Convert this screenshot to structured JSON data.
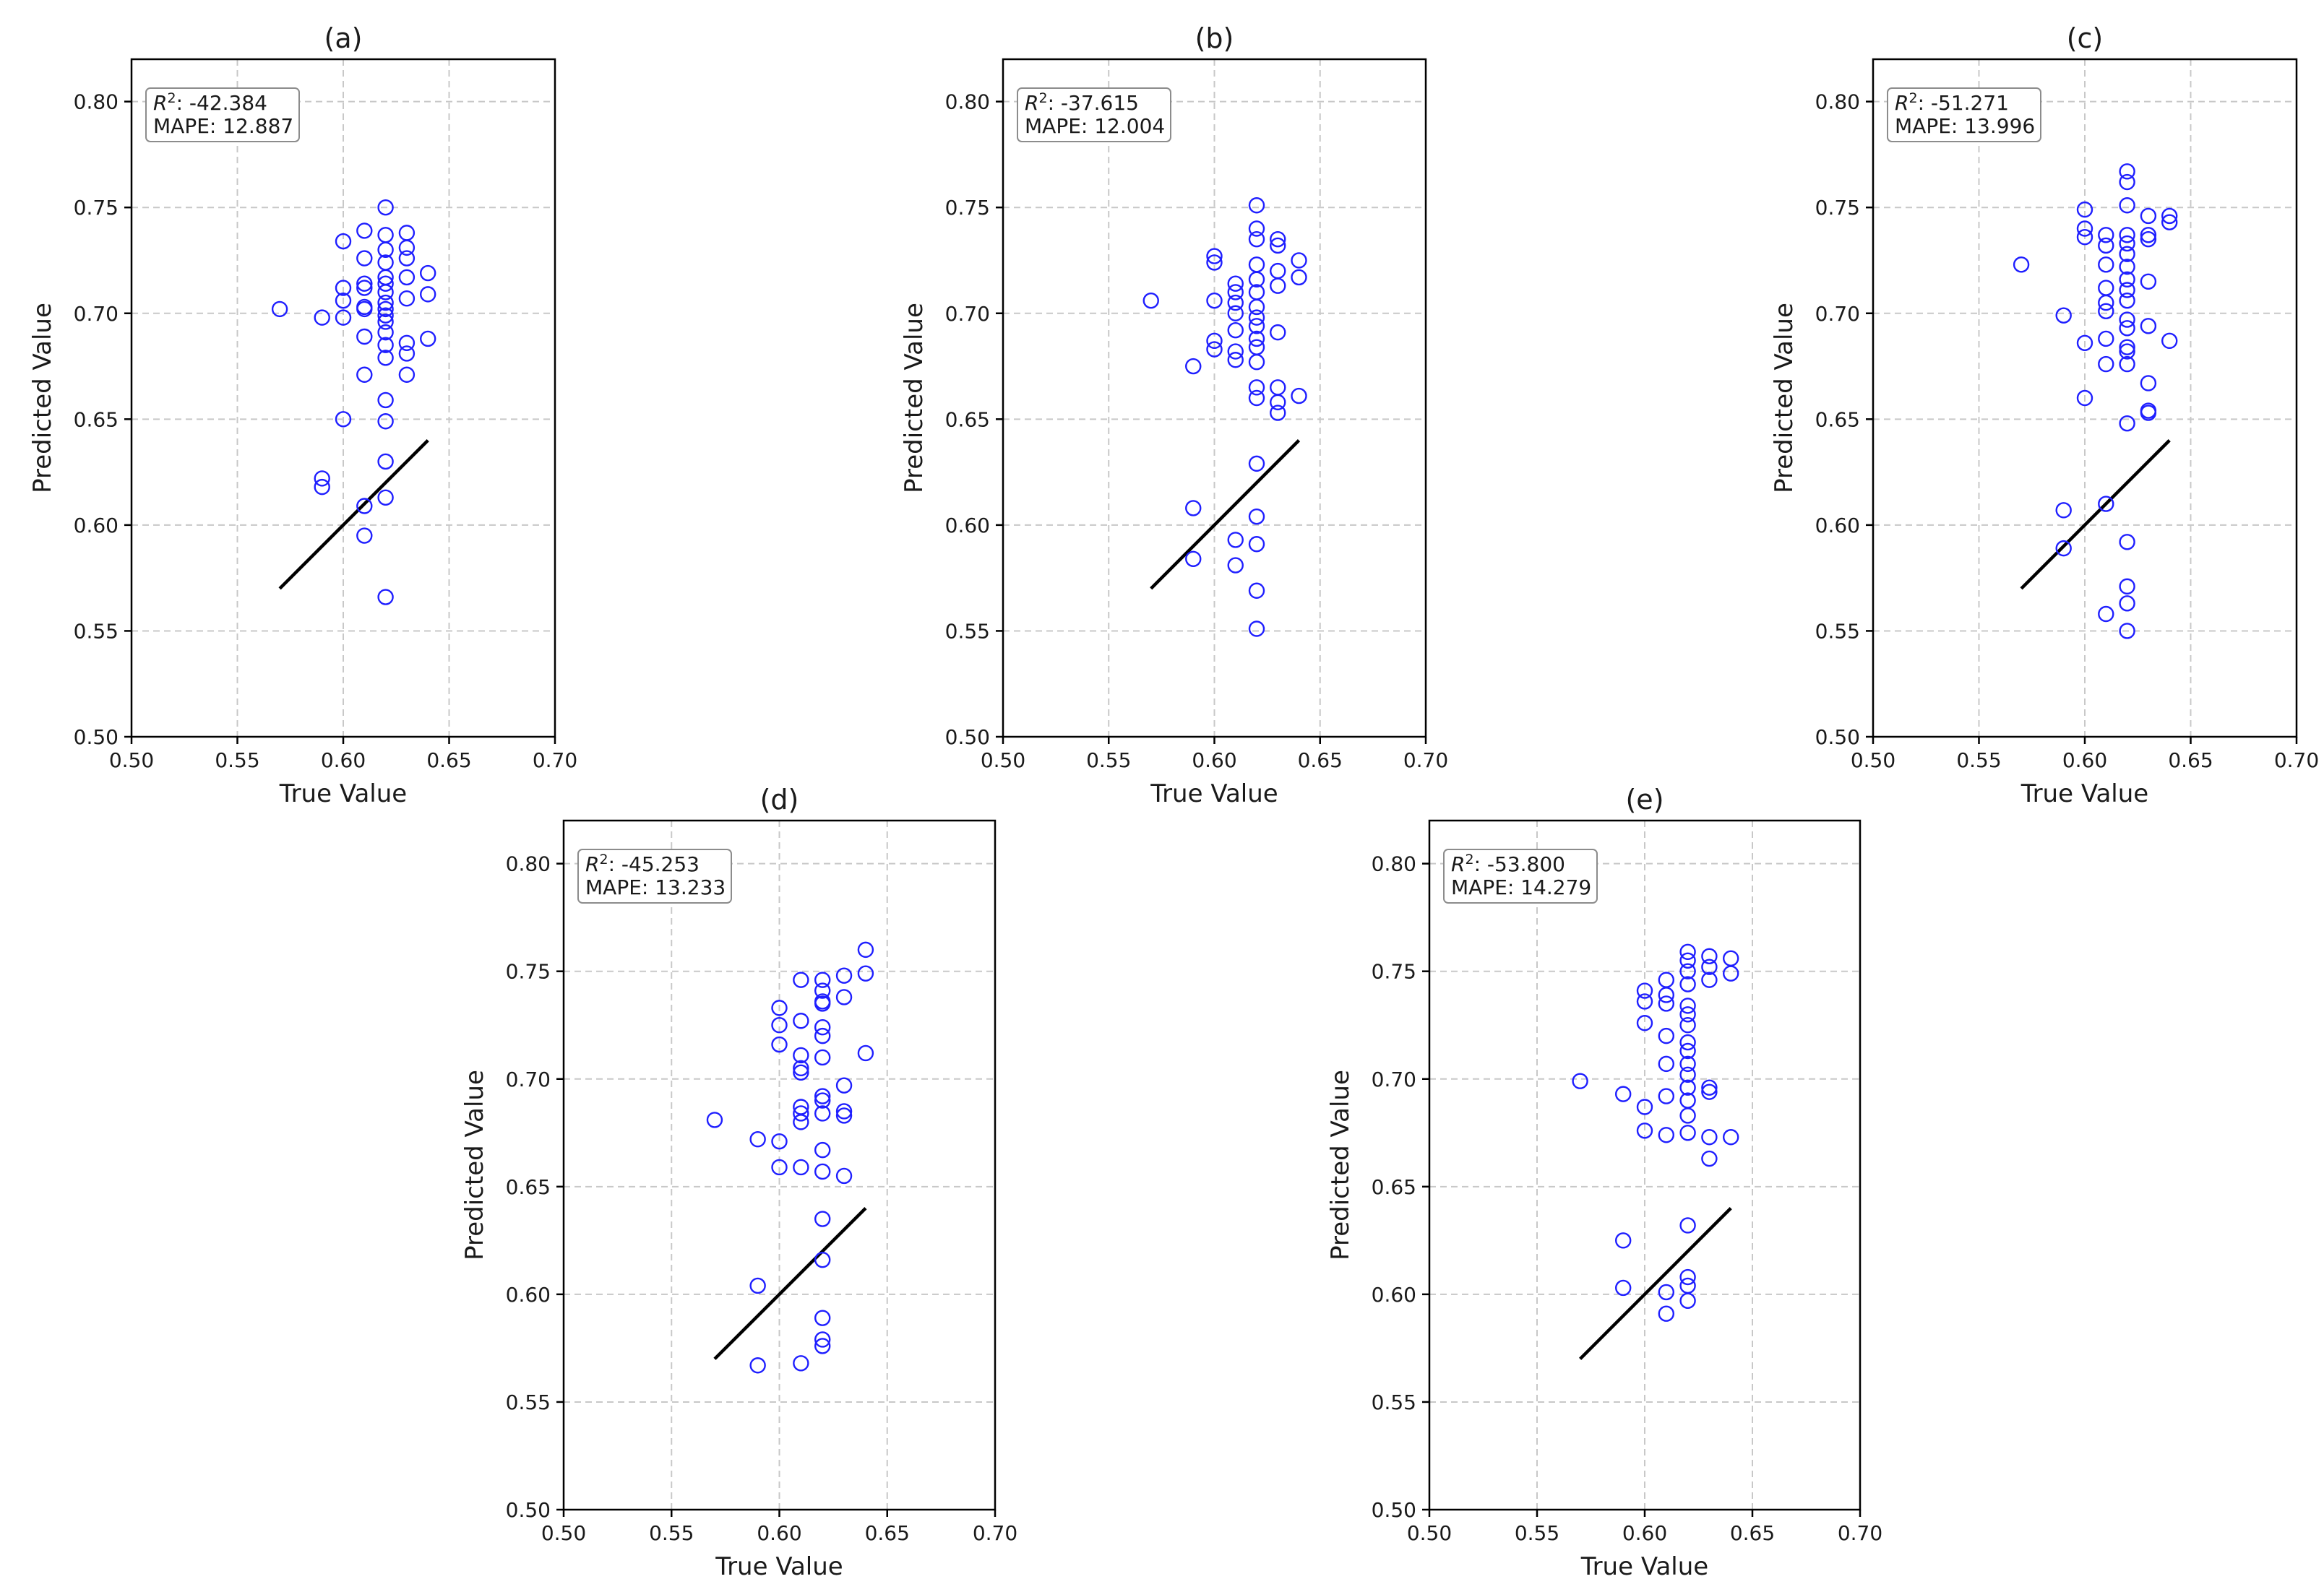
{
  "colors": {
    "points": "#1f1fff",
    "reference_line": "#000000"
  },
  "chart_data": [
    {
      "type": "scatter",
      "title": "(a)",
      "xlabel": "True Value",
      "ylabel": "Predicted Value",
      "xlim": [
        0.5,
        0.7
      ],
      "ylim": [
        0.5,
        0.82
      ],
      "xticks": [
        "0.50",
        "0.55",
        "0.60",
        "0.65",
        "0.70"
      ],
      "yticks": [
        "0.50",
        "0.55",
        "0.60",
        "0.65",
        "0.70",
        "0.75",
        "0.80"
      ],
      "grid": true,
      "stats": {
        "r2_label": "R",
        "r2_sup": "2",
        "r2_value": ": -42.384",
        "mape": "MAPE: 12.887"
      },
      "reference_line": [
        [
          0.57,
          0.57
        ],
        [
          0.64,
          0.64
        ]
      ],
      "points": [
        [
          0.57,
          0.702
        ],
        [
          0.59,
          0.698
        ],
        [
          0.59,
          0.622
        ],
        [
          0.59,
          0.618
        ],
        [
          0.6,
          0.734
        ],
        [
          0.6,
          0.712
        ],
        [
          0.6,
          0.706
        ],
        [
          0.6,
          0.698
        ],
        [
          0.6,
          0.65
        ],
        [
          0.61,
          0.739
        ],
        [
          0.61,
          0.726
        ],
        [
          0.61,
          0.714
        ],
        [
          0.61,
          0.712
        ],
        [
          0.61,
          0.703
        ],
        [
          0.61,
          0.702
        ],
        [
          0.61,
          0.689
        ],
        [
          0.61,
          0.671
        ],
        [
          0.61,
          0.609
        ],
        [
          0.61,
          0.595
        ],
        [
          0.62,
          0.75
        ],
        [
          0.62,
          0.737
        ],
        [
          0.62,
          0.73
        ],
        [
          0.62,
          0.724
        ],
        [
          0.62,
          0.717
        ],
        [
          0.62,
          0.714
        ],
        [
          0.62,
          0.71
        ],
        [
          0.62,
          0.705
        ],
        [
          0.62,
          0.702
        ],
        [
          0.62,
          0.699
        ],
        [
          0.62,
          0.696
        ],
        [
          0.62,
          0.691
        ],
        [
          0.62,
          0.685
        ],
        [
          0.62,
          0.679
        ],
        [
          0.62,
          0.659
        ],
        [
          0.62,
          0.649
        ],
        [
          0.62,
          0.63
        ],
        [
          0.62,
          0.613
        ],
        [
          0.62,
          0.566
        ],
        [
          0.63,
          0.738
        ],
        [
          0.63,
          0.731
        ],
        [
          0.63,
          0.726
        ],
        [
          0.63,
          0.717
        ],
        [
          0.63,
          0.707
        ],
        [
          0.63,
          0.686
        ],
        [
          0.63,
          0.681
        ],
        [
          0.63,
          0.671
        ],
        [
          0.64,
          0.719
        ],
        [
          0.64,
          0.709
        ],
        [
          0.64,
          0.688
        ]
      ]
    },
    {
      "type": "scatter",
      "title": "(b)",
      "xlabel": "True Value",
      "ylabel": "Predicted Value",
      "xlim": [
        0.5,
        0.7
      ],
      "ylim": [
        0.5,
        0.82
      ],
      "xticks": [
        "0.50",
        "0.55",
        "0.60",
        "0.65",
        "0.70"
      ],
      "yticks": [
        "0.50",
        "0.55",
        "0.60",
        "0.65",
        "0.70",
        "0.75",
        "0.80"
      ],
      "grid": true,
      "stats": {
        "r2_label": "R",
        "r2_sup": "2",
        "r2_value": ": -37.615",
        "mape": "MAPE: 12.004"
      },
      "reference_line": [
        [
          0.57,
          0.57
        ],
        [
          0.64,
          0.64
        ]
      ],
      "points": [
        [
          0.57,
          0.706
        ],
        [
          0.59,
          0.675
        ],
        [
          0.59,
          0.608
        ],
        [
          0.59,
          0.584
        ],
        [
          0.6,
          0.727
        ],
        [
          0.6,
          0.724
        ],
        [
          0.6,
          0.706
        ],
        [
          0.6,
          0.687
        ],
        [
          0.6,
          0.683
        ],
        [
          0.61,
          0.714
        ],
        [
          0.61,
          0.71
        ],
        [
          0.61,
          0.705
        ],
        [
          0.61,
          0.7
        ],
        [
          0.61,
          0.692
        ],
        [
          0.61,
          0.682
        ],
        [
          0.61,
          0.678
        ],
        [
          0.61,
          0.593
        ],
        [
          0.61,
          0.581
        ],
        [
          0.62,
          0.751
        ],
        [
          0.62,
          0.74
        ],
        [
          0.62,
          0.735
        ],
        [
          0.62,
          0.723
        ],
        [
          0.62,
          0.716
        ],
        [
          0.62,
          0.71
        ],
        [
          0.62,
          0.703
        ],
        [
          0.62,
          0.698
        ],
        [
          0.62,
          0.694
        ],
        [
          0.62,
          0.688
        ],
        [
          0.62,
          0.684
        ],
        [
          0.62,
          0.677
        ],
        [
          0.62,
          0.665
        ],
        [
          0.62,
          0.66
        ],
        [
          0.62,
          0.629
        ],
        [
          0.62,
          0.604
        ],
        [
          0.62,
          0.591
        ],
        [
          0.62,
          0.569
        ],
        [
          0.62,
          0.551
        ],
        [
          0.63,
          0.735
        ],
        [
          0.63,
          0.732
        ],
        [
          0.63,
          0.72
        ],
        [
          0.63,
          0.713
        ],
        [
          0.63,
          0.691
        ],
        [
          0.63,
          0.665
        ],
        [
          0.63,
          0.658
        ],
        [
          0.63,
          0.653
        ],
        [
          0.64,
          0.725
        ],
        [
          0.64,
          0.717
        ],
        [
          0.64,
          0.661
        ]
      ]
    },
    {
      "type": "scatter",
      "title": "(c)",
      "xlabel": "True Value",
      "ylabel": "Predicted Value",
      "xlim": [
        0.5,
        0.7
      ],
      "ylim": [
        0.5,
        0.82
      ],
      "xticks": [
        "0.50",
        "0.55",
        "0.60",
        "0.65",
        "0.70"
      ],
      "yticks": [
        "0.50",
        "0.55",
        "0.60",
        "0.65",
        "0.70",
        "0.75",
        "0.80"
      ],
      "grid": true,
      "stats": {
        "r2_label": "R",
        "r2_sup": "2",
        "r2_value": ": -51.271",
        "mape": "MAPE: 13.996"
      },
      "reference_line": [
        [
          0.57,
          0.57
        ],
        [
          0.64,
          0.64
        ]
      ],
      "points": [
        [
          0.57,
          0.723
        ],
        [
          0.59,
          0.699
        ],
        [
          0.59,
          0.607
        ],
        [
          0.59,
          0.589
        ],
        [
          0.6,
          0.749
        ],
        [
          0.6,
          0.74
        ],
        [
          0.6,
          0.736
        ],
        [
          0.6,
          0.686
        ],
        [
          0.6,
          0.66
        ],
        [
          0.61,
          0.737
        ],
        [
          0.61,
          0.732
        ],
        [
          0.61,
          0.723
        ],
        [
          0.61,
          0.712
        ],
        [
          0.61,
          0.705
        ],
        [
          0.61,
          0.701
        ],
        [
          0.61,
          0.688
        ],
        [
          0.61,
          0.676
        ],
        [
          0.61,
          0.61
        ],
        [
          0.61,
          0.558
        ],
        [
          0.62,
          0.767
        ],
        [
          0.62,
          0.762
        ],
        [
          0.62,
          0.751
        ],
        [
          0.62,
          0.737
        ],
        [
          0.62,
          0.733
        ],
        [
          0.62,
          0.728
        ],
        [
          0.62,
          0.722
        ],
        [
          0.62,
          0.716
        ],
        [
          0.62,
          0.711
        ],
        [
          0.62,
          0.706
        ],
        [
          0.62,
          0.697
        ],
        [
          0.62,
          0.693
        ],
        [
          0.62,
          0.684
        ],
        [
          0.62,
          0.682
        ],
        [
          0.62,
          0.676
        ],
        [
          0.62,
          0.648
        ],
        [
          0.62,
          0.592
        ],
        [
          0.62,
          0.571
        ],
        [
          0.62,
          0.563
        ],
        [
          0.62,
          0.55
        ],
        [
          0.63,
          0.746
        ],
        [
          0.63,
          0.737
        ],
        [
          0.63,
          0.735
        ],
        [
          0.63,
          0.715
        ],
        [
          0.63,
          0.694
        ],
        [
          0.63,
          0.667
        ],
        [
          0.63,
          0.654
        ],
        [
          0.63,
          0.653
        ],
        [
          0.64,
          0.746
        ],
        [
          0.64,
          0.743
        ],
        [
          0.64,
          0.687
        ]
      ]
    },
    {
      "type": "scatter",
      "title": "(d)",
      "xlabel": "True Value",
      "ylabel": "Predicted Value",
      "xlim": [
        0.5,
        0.7
      ],
      "ylim": [
        0.5,
        0.82
      ],
      "xticks": [
        "0.50",
        "0.55",
        "0.60",
        "0.65",
        "0.70"
      ],
      "yticks": [
        "0.50",
        "0.55",
        "0.60",
        "0.65",
        "0.70",
        "0.75",
        "0.80"
      ],
      "grid": true,
      "stats": {
        "r2_label": "R",
        "r2_sup": "2",
        "r2_value": ": -45.253",
        "mape": "MAPE: 13.233"
      },
      "reference_line": [
        [
          0.57,
          0.57
        ],
        [
          0.64,
          0.64
        ]
      ],
      "points": [
        [
          0.57,
          0.681
        ],
        [
          0.59,
          0.672
        ],
        [
          0.59,
          0.604
        ],
        [
          0.59,
          0.567
        ],
        [
          0.6,
          0.733
        ],
        [
          0.6,
          0.725
        ],
        [
          0.6,
          0.716
        ],
        [
          0.6,
          0.671
        ],
        [
          0.6,
          0.659
        ],
        [
          0.61,
          0.746
        ],
        [
          0.61,
          0.727
        ],
        [
          0.61,
          0.711
        ],
        [
          0.61,
          0.705
        ],
        [
          0.61,
          0.703
        ],
        [
          0.61,
          0.687
        ],
        [
          0.61,
          0.684
        ],
        [
          0.61,
          0.68
        ],
        [
          0.61,
          0.659
        ],
        [
          0.61,
          0.568
        ],
        [
          0.62,
          0.746
        ],
        [
          0.62,
          0.741
        ],
        [
          0.62,
          0.736
        ],
        [
          0.62,
          0.735
        ],
        [
          0.62,
          0.724
        ],
        [
          0.62,
          0.72
        ],
        [
          0.62,
          0.71
        ],
        [
          0.62,
          0.692
        ],
        [
          0.62,
          0.69
        ],
        [
          0.62,
          0.684
        ],
        [
          0.62,
          0.667
        ],
        [
          0.62,
          0.657
        ],
        [
          0.62,
          0.635
        ],
        [
          0.62,
          0.616
        ],
        [
          0.62,
          0.589
        ],
        [
          0.62,
          0.579
        ],
        [
          0.62,
          0.576
        ],
        [
          0.63,
          0.748
        ],
        [
          0.63,
          0.738
        ],
        [
          0.63,
          0.697
        ],
        [
          0.63,
          0.685
        ],
        [
          0.63,
          0.683
        ],
        [
          0.63,
          0.655
        ],
        [
          0.64,
          0.76
        ],
        [
          0.64,
          0.749
        ],
        [
          0.64,
          0.712
        ]
      ]
    },
    {
      "type": "scatter",
      "title": "(e)",
      "xlabel": "True Value",
      "ylabel": "Predicted Value",
      "xlim": [
        0.5,
        0.7
      ],
      "ylim": [
        0.5,
        0.82
      ],
      "xticks": [
        "0.50",
        "0.55",
        "0.60",
        "0.65",
        "0.70"
      ],
      "yticks": [
        "0.50",
        "0.55",
        "0.60",
        "0.65",
        "0.70",
        "0.75",
        "0.80"
      ],
      "grid": true,
      "stats": {
        "r2_label": "R",
        "r2_sup": "2",
        "r2_value": ": -53.800",
        "mape": "MAPE: 14.279"
      },
      "reference_line": [
        [
          0.57,
          0.57
        ],
        [
          0.64,
          0.64
        ]
      ],
      "points": [
        [
          0.57,
          0.699
        ],
        [
          0.59,
          0.693
        ],
        [
          0.59,
          0.625
        ],
        [
          0.59,
          0.603
        ],
        [
          0.6,
          0.741
        ],
        [
          0.6,
          0.736
        ],
        [
          0.6,
          0.726
        ],
        [
          0.6,
          0.687
        ],
        [
          0.6,
          0.676
        ],
        [
          0.61,
          0.746
        ],
        [
          0.61,
          0.739
        ],
        [
          0.61,
          0.735
        ],
        [
          0.61,
          0.72
        ],
        [
          0.61,
          0.707
        ],
        [
          0.61,
          0.692
        ],
        [
          0.61,
          0.674
        ],
        [
          0.61,
          0.601
        ],
        [
          0.61,
          0.591
        ],
        [
          0.62,
          0.759
        ],
        [
          0.62,
          0.755
        ],
        [
          0.62,
          0.75
        ],
        [
          0.62,
          0.744
        ],
        [
          0.62,
          0.734
        ],
        [
          0.62,
          0.73
        ],
        [
          0.62,
          0.725
        ],
        [
          0.62,
          0.717
        ],
        [
          0.62,
          0.713
        ],
        [
          0.62,
          0.707
        ],
        [
          0.62,
          0.702
        ],
        [
          0.62,
          0.696
        ],
        [
          0.62,
          0.69
        ],
        [
          0.62,
          0.683
        ],
        [
          0.62,
          0.675
        ],
        [
          0.62,
          0.632
        ],
        [
          0.62,
          0.608
        ],
        [
          0.62,
          0.604
        ],
        [
          0.62,
          0.597
        ],
        [
          0.63,
          0.757
        ],
        [
          0.63,
          0.752
        ],
        [
          0.63,
          0.746
        ],
        [
          0.63,
          0.696
        ],
        [
          0.63,
          0.694
        ],
        [
          0.63,
          0.673
        ],
        [
          0.63,
          0.663
        ],
        [
          0.64,
          0.756
        ],
        [
          0.64,
          0.749
        ],
        [
          0.64,
          0.673
        ]
      ]
    }
  ]
}
